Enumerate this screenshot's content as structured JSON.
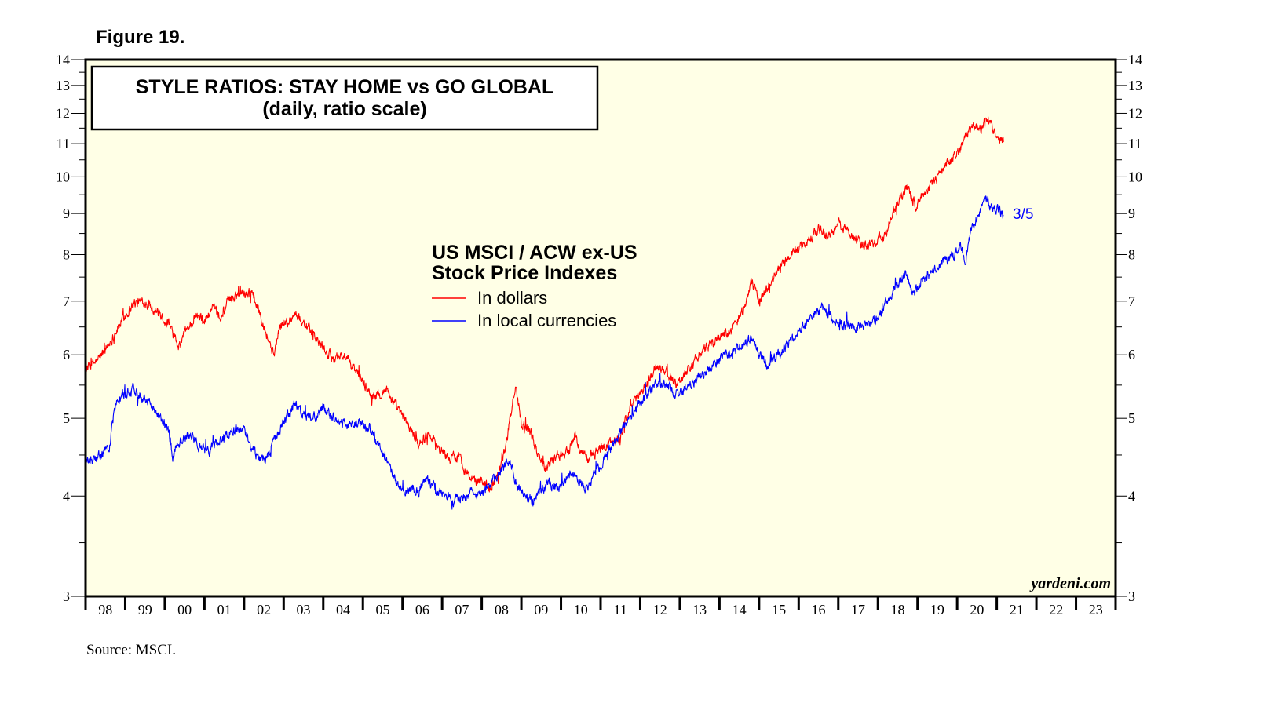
{
  "figure_label": "Figure 19.",
  "source": "Source: MSCI.",
  "colors": {
    "background": "#ffffe6",
    "dollars": "#ff0000",
    "local": "#0000ff"
  },
  "chart_data": {
    "type": "line",
    "title": "STYLE RATIOS: STAY HOME vs GO GLOBAL",
    "subtitle": "(daily, ratio scale)",
    "legend_title_line1": "US MSCI / ACW ex-US",
    "legend_title_line2": "Stock Price Indexes",
    "yscale": "log",
    "ylim": [
      3,
      14
    ],
    "y_ticks": [
      3,
      4,
      5,
      6,
      7,
      8,
      9,
      10,
      11,
      12,
      13,
      14
    ],
    "y_tick_labels": [
      "3",
      "4",
      "5",
      "6",
      "7",
      "8",
      "9",
      "10",
      "11",
      "12",
      "13",
      "14"
    ],
    "xlim": [
      1998.0,
      2024.0
    ],
    "x_tick_labels": [
      "98",
      "99",
      "00",
      "01",
      "02",
      "03",
      "04",
      "05",
      "06",
      "07",
      "08",
      "09",
      "10",
      "11",
      "12",
      "13",
      "14",
      "15",
      "16",
      "17",
      "18",
      "19",
      "20",
      "21",
      "22",
      "23"
    ],
    "end_label": "3/5",
    "watermark": "yardeni.com",
    "series": [
      {
        "name": "In dollars",
        "color": "#ff0000",
        "points": [
          [
            1998.0,
            5.75
          ],
          [
            1998.3,
            5.9
          ],
          [
            1998.6,
            6.2
          ],
          [
            1998.9,
            6.6
          ],
          [
            1999.2,
            6.95
          ],
          [
            1999.5,
            7.0
          ],
          [
            1999.8,
            6.8
          ],
          [
            2000.1,
            6.55
          ],
          [
            2000.35,
            6.1
          ],
          [
            2000.5,
            6.4
          ],
          [
            2000.8,
            6.7
          ],
          [
            2001.0,
            6.6
          ],
          [
            2001.2,
            6.85
          ],
          [
            2001.4,
            6.65
          ],
          [
            2001.6,
            7.0
          ],
          [
            2001.9,
            7.2
          ],
          [
            2002.2,
            7.15
          ],
          [
            2002.4,
            6.8
          ],
          [
            2002.6,
            6.3
          ],
          [
            2002.75,
            6.0
          ],
          [
            2002.9,
            6.5
          ],
          [
            2003.1,
            6.6
          ],
          [
            2003.3,
            6.75
          ],
          [
            2003.6,
            6.5
          ],
          [
            2003.9,
            6.2
          ],
          [
            2004.2,
            5.95
          ],
          [
            2004.5,
            6.0
          ],
          [
            2004.8,
            5.75
          ],
          [
            2005.1,
            5.45
          ],
          [
            2005.3,
            5.3
          ],
          [
            2005.6,
            5.45
          ],
          [
            2005.8,
            5.2
          ],
          [
            2006.1,
            4.95
          ],
          [
            2006.4,
            4.65
          ],
          [
            2006.7,
            4.8
          ],
          [
            2006.9,
            4.6
          ],
          [
            2007.2,
            4.45
          ],
          [
            2007.4,
            4.5
          ],
          [
            2007.6,
            4.3
          ],
          [
            2007.8,
            4.15
          ],
          [
            2008.0,
            4.2
          ],
          [
            2008.2,
            4.1
          ],
          [
            2008.4,
            4.25
          ],
          [
            2008.6,
            4.6
          ],
          [
            2008.75,
            5.1
          ],
          [
            2008.85,
            5.5
          ],
          [
            2009.0,
            4.95
          ],
          [
            2009.2,
            4.85
          ],
          [
            2009.4,
            4.55
          ],
          [
            2009.6,
            4.35
          ],
          [
            2009.8,
            4.45
          ],
          [
            2010.0,
            4.5
          ],
          [
            2010.2,
            4.55
          ],
          [
            2010.35,
            4.78
          ],
          [
            2010.5,
            4.55
          ],
          [
            2010.7,
            4.45
          ],
          [
            2010.9,
            4.55
          ],
          [
            2011.2,
            4.65
          ],
          [
            2011.5,
            4.75
          ],
          [
            2011.7,
            5.1
          ],
          [
            2011.9,
            5.3
          ],
          [
            2012.2,
            5.55
          ],
          [
            2012.4,
            5.8
          ],
          [
            2012.7,
            5.7
          ],
          [
            2012.9,
            5.5
          ],
          [
            2013.2,
            5.75
          ],
          [
            2013.5,
            6.0
          ],
          [
            2013.8,
            6.2
          ],
          [
            2014.0,
            6.3
          ],
          [
            2014.3,
            6.45
          ],
          [
            2014.6,
            6.8
          ],
          [
            2014.8,
            7.4
          ],
          [
            2015.0,
            7.0
          ],
          [
            2015.3,
            7.4
          ],
          [
            2015.6,
            7.8
          ],
          [
            2015.9,
            8.1
          ],
          [
            2016.2,
            8.25
          ],
          [
            2016.5,
            8.6
          ],
          [
            2016.8,
            8.4
          ],
          [
            2017.0,
            8.75
          ],
          [
            2017.3,
            8.5
          ],
          [
            2017.6,
            8.2
          ],
          [
            2017.9,
            8.3
          ],
          [
            2018.2,
            8.45
          ],
          [
            2018.4,
            9.1
          ],
          [
            2018.6,
            9.5
          ],
          [
            2018.75,
            9.7
          ],
          [
            2018.95,
            9.2
          ],
          [
            2019.2,
            9.6
          ],
          [
            2019.5,
            10.0
          ],
          [
            2019.8,
            10.4
          ],
          [
            2020.0,
            10.7
          ],
          [
            2020.2,
            11.2
          ],
          [
            2020.4,
            11.6
          ],
          [
            2020.6,
            11.5
          ],
          [
            2020.75,
            11.9
          ],
          [
            2020.9,
            11.5
          ],
          [
            2021.05,
            11.2
          ],
          [
            2021.17,
            11.05
          ]
        ]
      },
      {
        "name": "In local currencies",
        "color": "#0000ff",
        "points": [
          [
            1998.0,
            4.4
          ],
          [
            1998.3,
            4.45
          ],
          [
            1998.6,
            4.6
          ],
          [
            1998.75,
            5.2
          ],
          [
            1999.0,
            5.35
          ],
          [
            1999.2,
            5.45
          ],
          [
            1999.5,
            5.3
          ],
          [
            1999.8,
            5.1
          ],
          [
            2000.1,
            4.8
          ],
          [
            2000.2,
            4.5
          ],
          [
            2000.4,
            4.7
          ],
          [
            2000.7,
            4.75
          ],
          [
            2000.9,
            4.6
          ],
          [
            2001.1,
            4.55
          ],
          [
            2001.3,
            4.65
          ],
          [
            2001.5,
            4.75
          ],
          [
            2001.8,
            4.85
          ],
          [
            2002.0,
            4.8
          ],
          [
            2002.2,
            4.6
          ],
          [
            2002.4,
            4.45
          ],
          [
            2002.6,
            4.5
          ],
          [
            2002.8,
            4.7
          ],
          [
            2003.0,
            4.95
          ],
          [
            2003.3,
            5.2
          ],
          [
            2003.5,
            5.05
          ],
          [
            2003.8,
            5.0
          ],
          [
            2004.0,
            5.15
          ],
          [
            2004.3,
            5.0
          ],
          [
            2004.6,
            4.9
          ],
          [
            2004.9,
            4.95
          ],
          [
            2005.2,
            4.85
          ],
          [
            2005.4,
            4.6
          ],
          [
            2005.6,
            4.4
          ],
          [
            2005.8,
            4.2
          ],
          [
            2006.0,
            4.05
          ],
          [
            2006.2,
            4.1
          ],
          [
            2006.4,
            4.05
          ],
          [
            2006.6,
            4.2
          ],
          [
            2006.9,
            4.05
          ],
          [
            2007.1,
            4.0
          ],
          [
            2007.3,
            3.95
          ],
          [
            2007.5,
            3.97
          ],
          [
            2007.7,
            4.05
          ],
          [
            2007.9,
            4.0
          ],
          [
            2008.1,
            4.1
          ],
          [
            2008.3,
            4.2
          ],
          [
            2008.5,
            4.3
          ],
          [
            2008.7,
            4.4
          ],
          [
            2008.9,
            4.1
          ],
          [
            2009.1,
            4.0
          ],
          [
            2009.3,
            3.95
          ],
          [
            2009.5,
            4.05
          ],
          [
            2009.7,
            4.15
          ],
          [
            2009.9,
            4.1
          ],
          [
            2010.1,
            4.2
          ],
          [
            2010.3,
            4.3
          ],
          [
            2010.5,
            4.15
          ],
          [
            2010.7,
            4.1
          ],
          [
            2010.9,
            4.3
          ],
          [
            2011.2,
            4.55
          ],
          [
            2011.5,
            4.8
          ],
          [
            2011.8,
            5.05
          ],
          [
            2012.0,
            5.25
          ],
          [
            2012.3,
            5.45
          ],
          [
            2012.5,
            5.55
          ],
          [
            2012.7,
            5.5
          ],
          [
            2012.9,
            5.35
          ],
          [
            2013.1,
            5.45
          ],
          [
            2013.4,
            5.55
          ],
          [
            2013.6,
            5.7
          ],
          [
            2013.9,
            5.85
          ],
          [
            2014.1,
            6.0
          ],
          [
            2014.4,
            6.05
          ],
          [
            2014.6,
            6.2
          ],
          [
            2014.8,
            6.3
          ],
          [
            2015.0,
            6.0
          ],
          [
            2015.2,
            5.8
          ],
          [
            2015.5,
            6.0
          ],
          [
            2015.8,
            6.25
          ],
          [
            2016.1,
            6.5
          ],
          [
            2016.4,
            6.7
          ],
          [
            2016.6,
            6.85
          ],
          [
            2016.9,
            6.65
          ],
          [
            2017.1,
            6.55
          ],
          [
            2017.4,
            6.5
          ],
          [
            2017.7,
            6.55
          ],
          [
            2017.9,
            6.6
          ],
          [
            2018.1,
            6.8
          ],
          [
            2018.3,
            7.1
          ],
          [
            2018.5,
            7.35
          ],
          [
            2018.7,
            7.6
          ],
          [
            2018.9,
            7.15
          ],
          [
            2019.1,
            7.4
          ],
          [
            2019.4,
            7.6
          ],
          [
            2019.7,
            7.85
          ],
          [
            2019.9,
            8.0
          ],
          [
            2020.1,
            8.2
          ],
          [
            2020.2,
            7.8
          ],
          [
            2020.3,
            8.4
          ],
          [
            2020.5,
            8.9
          ],
          [
            2020.65,
            9.2
          ],
          [
            2020.75,
            9.45
          ],
          [
            2020.9,
            9.1
          ],
          [
            2021.05,
            9.15
          ],
          [
            2021.17,
            8.95
          ]
        ]
      }
    ]
  }
}
